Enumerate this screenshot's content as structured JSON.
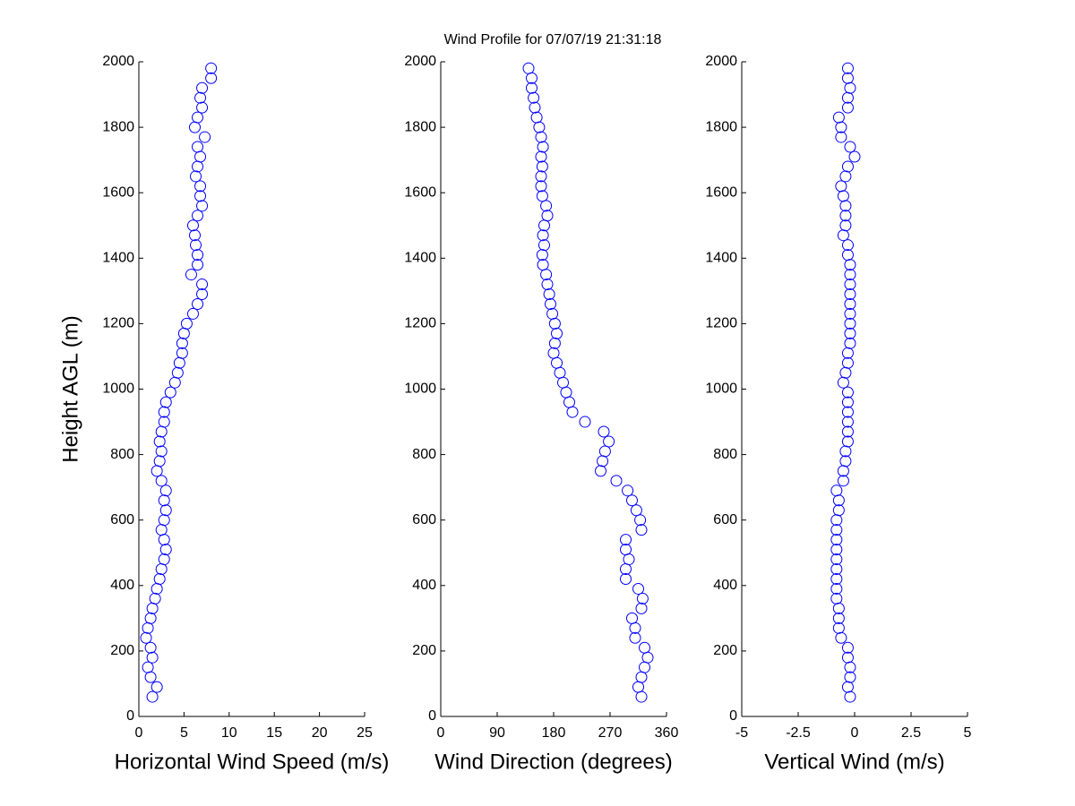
{
  "title": "Wind Profile for  07/07/19 21:31:18",
  "chart_data": [
    {
      "type": "scatter",
      "xlabel": "Horizontal Wind Speed (m/s)",
      "ylabel": "Height AGL (m)",
      "color": "#0000ff",
      "xlim": [
        0,
        25
      ],
      "xticks": [
        0,
        5,
        10,
        15,
        20,
        25
      ],
      "ylim": [
        0,
        2000
      ],
      "yticks": [
        0,
        200,
        400,
        600,
        800,
        1000,
        1200,
        1400,
        1600,
        1800,
        2000
      ],
      "x": [
        1.5,
        2.0,
        1.3,
        1.0,
        1.5,
        1.3,
        0.8,
        1.0,
        1.3,
        1.5,
        1.8,
        2.0,
        2.3,
        2.5,
        2.8,
        3.0,
        2.8,
        2.5,
        2.8,
        3.0,
        2.8,
        3.0,
        2.5,
        2.0,
        2.3,
        2.5,
        2.3,
        2.5,
        2.8,
        2.8,
        3.0,
        3.5,
        4.0,
        4.3,
        4.5,
        4.8,
        4.8,
        5.0,
        5.3,
        6.0,
        6.5,
        7.0,
        7.0,
        5.8,
        6.5,
        6.5,
        6.3,
        6.2,
        6.0,
        6.5,
        7.0,
        6.8,
        6.8,
        6.3,
        6.5,
        6.8,
        6.5,
        7.3,
        6.2,
        6.5,
        7.0,
        6.8,
        7.0,
        8.0,
        8.0
      ],
      "y": [
        60,
        90,
        120,
        150,
        180,
        210,
        240,
        270,
        300,
        330,
        360,
        390,
        420,
        450,
        480,
        510,
        540,
        570,
        600,
        630,
        660,
        690,
        720,
        750,
        780,
        810,
        840,
        870,
        900,
        930,
        960,
        990,
        1020,
        1050,
        1080,
        1110,
        1140,
        1170,
        1200,
        1230,
        1260,
        1290,
        1320,
        1350,
        1380,
        1410,
        1440,
        1470,
        1500,
        1530,
        1560,
        1590,
        1620,
        1650,
        1680,
        1710,
        1740,
        1770,
        1800,
        1830,
        1860,
        1890,
        1920,
        1950,
        1980
      ]
    },
    {
      "type": "scatter",
      "xlabel": "Wind Direction (degrees)",
      "color": "#0000ff",
      "xlim": [
        0,
        360
      ],
      "xticks": [
        0,
        90,
        180,
        270,
        360
      ],
      "ylim": [
        0,
        2000
      ],
      "yticks": [
        0,
        200,
        400,
        600,
        800,
        1000,
        1200,
        1400,
        1600,
        1800,
        2000
      ],
      "x": [
        320,
        315,
        320,
        325,
        330,
        325,
        310,
        310,
        305,
        320,
        322,
        315,
        295,
        295,
        300,
        295,
        295,
        320,
        318,
        312,
        305,
        298,
        280,
        255,
        258,
        262,
        268,
        260,
        230,
        210,
        205,
        200,
        195,
        190,
        185,
        180,
        182,
        185,
        182,
        178,
        175,
        173,
        170,
        168,
        163,
        162,
        165,
        163,
        165,
        170,
        168,
        162,
        160,
        160,
        162,
        160,
        163,
        160,
        157,
        153,
        150,
        148,
        145,
        145,
        140
      ],
      "y": [
        60,
        90,
        120,
        150,
        180,
        210,
        240,
        270,
        300,
        330,
        360,
        390,
        420,
        450,
        480,
        510,
        540,
        570,
        600,
        630,
        660,
        690,
        720,
        750,
        780,
        810,
        840,
        870,
        900,
        930,
        960,
        990,
        1020,
        1050,
        1080,
        1110,
        1140,
        1170,
        1200,
        1230,
        1260,
        1290,
        1320,
        1350,
        1380,
        1410,
        1440,
        1470,
        1500,
        1530,
        1560,
        1590,
        1620,
        1650,
        1680,
        1710,
        1740,
        1770,
        1800,
        1830,
        1860,
        1890,
        1920,
        1950,
        1980
      ]
    },
    {
      "type": "scatter",
      "xlabel": "Vertical Wind (m/s)",
      "color": "#0000ff",
      "xlim": [
        -5,
        5
      ],
      "xticks": [
        -5,
        -2.5,
        0,
        2.5,
        5
      ],
      "ylim": [
        0,
        2000
      ],
      "yticks": [
        0,
        200,
        400,
        600,
        800,
        1000,
        1200,
        1400,
        1600,
        1800,
        2000
      ],
      "x": [
        -0.2,
        -0.3,
        -0.2,
        -0.2,
        -0.3,
        -0.3,
        -0.6,
        -0.7,
        -0.7,
        -0.7,
        -0.8,
        -0.8,
        -0.8,
        -0.8,
        -0.8,
        -0.8,
        -0.8,
        -0.8,
        -0.8,
        -0.7,
        -0.7,
        -0.8,
        -0.5,
        -0.5,
        -0.4,
        -0.4,
        -0.3,
        -0.3,
        -0.3,
        -0.3,
        -0.3,
        -0.3,
        -0.5,
        -0.4,
        -0.3,
        -0.3,
        -0.2,
        -0.2,
        -0.2,
        -0.2,
        -0.2,
        -0.2,
        -0.2,
        -0.2,
        -0.2,
        -0.3,
        -0.3,
        -0.5,
        -0.4,
        -0.4,
        -0.4,
        -0.5,
        -0.6,
        -0.4,
        -0.3,
        0.0,
        -0.2,
        -0.6,
        -0.6,
        -0.7,
        -0.3,
        -0.3,
        -0.2,
        -0.3,
        -0.3
      ],
      "y": [
        60,
        90,
        120,
        150,
        180,
        210,
        240,
        270,
        300,
        330,
        360,
        390,
        420,
        450,
        480,
        510,
        540,
        570,
        600,
        630,
        660,
        690,
        720,
        750,
        780,
        810,
        840,
        870,
        900,
        930,
        960,
        990,
        1020,
        1050,
        1080,
        1110,
        1140,
        1170,
        1200,
        1230,
        1260,
        1290,
        1320,
        1350,
        1380,
        1410,
        1440,
        1470,
        1500,
        1530,
        1560,
        1590,
        1620,
        1650,
        1680,
        1710,
        1740,
        1770,
        1800,
        1830,
        1860,
        1890,
        1920,
        1950,
        1980
      ]
    }
  ]
}
